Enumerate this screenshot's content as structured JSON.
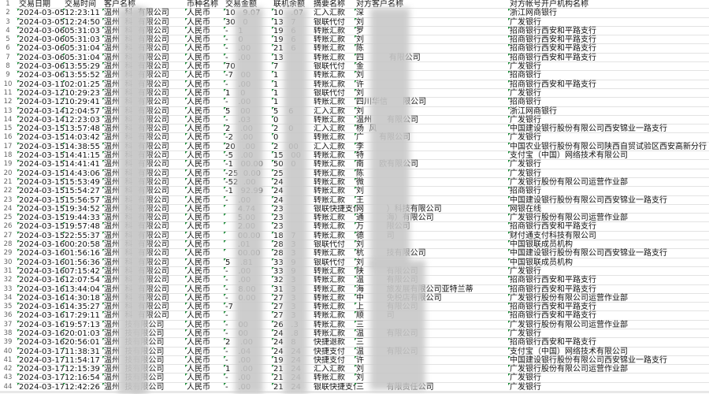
{
  "columns": [
    "交易日期",
    "交易时间",
    "客户名称",
    "币种名称",
    "交易金额",
    "联机余额",
    "摘要名称",
    "对方客户名称",
    "对方帐号开户机构名称"
  ],
  "rows": [
    [
      "2024-03-05",
      "12:23:11",
      "温州  科  有限公司",
      "人民币",
      "10   9.07",
      "10   .07",
      "汇入汇款",
      "深",
      "浙江网商银行"
    ],
    [
      "2024-03-05",
      "12:24:50",
      "温州  科  有限公司",
      "人民币",
      "30   0",
      "13   7",
      "银联代付",
      "刘",
      "广发银行"
    ],
    [
      "2024-03-06",
      "05:31:03",
      "温州  科  有限公司",
      "人民币",
      "-    1",
      "19   6",
      "转账汇款",
      "罗",
      "招商银行西安和平路支行"
    ],
    [
      "2024-03-06",
      "05:31:03",
      "温州  科  有限公司",
      "人民币",
      "-    0",
      "19   6",
      "转账汇款",
      "刘",
      "招商银行西安和平路支行"
    ],
    [
      "2024-03-06",
      "05:31:04",
      "温州  科  有限公司",
      "人民币",
      "-    .00",
      "21   6",
      "转账汇款",
      "陈",
      "招商银行西安和平路支行"
    ],
    [
      "2024-03-06",
      "05:31:04",
      "温州  科  有限公司",
      "人民币",
      "-    .00",
      "13",
      "转账汇款",
      "四          有限公司",
      "招商银行西安和平路支行"
    ],
    [
      "2024-03-06",
      "13:55:29",
      "温州  科  有限公司",
      "人民币",
      "70",
      "7",
      "银联代付",
      "金",
      "广发银行"
    ],
    [
      "2024-03-06",
      "13:55:52",
      "温州  科  有限公司",
      "人民币",
      "-7   00",
      "1",
      "转账汇款",
      "刘",
      "招商银行"
    ],
    [
      "2024-03-11",
      "02:01:25",
      "温州  科  有限公司",
      "人民币",
      "-    .00",
      "1",
      "转账汇款",
      "许",
      "招商银行西安和平路支行"
    ],
    [
      "2024-03-12",
      "10:29:23",
      "温州  科  有限公司",
      "人民币",
      "1    0",
      "1",
      "银联代付",
      "刘",
      "广发银行"
    ],
    [
      "2024-03-12",
      "10:29:41",
      "温州  科  有限公司",
      "人民币",
      "-    .00",
      "1",
      "转账汇款",
      "四川华信      限公司",
      "招商银行"
    ],
    [
      "2024-03-14",
      "12:04:57",
      "温州  科  有限公司",
      "人民币",
      "5    00",
      "5    6",
      "汇入汇款",
      "刘",
      "浙江网商银行"
    ],
    [
      "2024-03-14",
      "12:23:03",
      "温州  科  有限公司",
      "人民币",
      "-    .03",
      "0",
      "转账汇款",
      "温州      有限公司",
      "广发银行"
    ],
    [
      "2024-03-15",
      "13:57:48",
      "温州  科  有限公司",
      "人民币",
      "2    .00",
      "2    0",
      "汇入汇款",
      "杨  风",
      "中国建设银行股份有限公司西安锦业一路支行"
    ],
    [
      "2024-03-15",
      "14:03:42",
      "温州  科  有限公司",
      "人民币",
      "-2   .00",
      "0",
      "转账汇款",
      "广      有限公司",
      "广发银行"
    ],
    [
      "2024-03-15",
      "14:38:55",
      "温州  科  有限公司",
      "人民币",
      "20   .00",
      "2    00",
      "汇入汇款",
      "李",
      "中国农业银行股份有限公司陕西自贸试验区西安高新分行"
    ],
    [
      "2024-03-15",
      "14:41:15",
      "温州  科  有限公司",
      "人民币",
      "-5   .00",
      "15   00",
      "转账汇款",
      "特",
      "支付宝（中国）网络技术有限公司"
    ],
    [
      "2024-03-15",
      "14:41:41",
      "温州  科  有限公司",
      "人民币",
      "-1   00.00",
      "50   0",
      "转账汇款",
      "南      欧有限公司",
      "广发银行"
    ],
    [
      "2024-03-15",
      "14:43:06",
      "温州  科  有限公司",
      "人民币",
      "-25  0.00",
      "25",
      "转账汇款",
      "陈",
      "广发银行"
    ],
    [
      "2024-03-15",
      "15:53:49",
      "温州  科  有限公司",
      "人民币",
      "-52  .00",
      "24",
      "转账汇款",
      "微",
      "广发银行股份有限公司运营作业部"
    ],
    [
      "2024-03-15",
      "15:54:27",
      "温州  科  有限公司",
      "人民币",
      "-1   92.99",
      "24",
      "转账汇款",
      "刘",
      "招商银行"
    ],
    [
      "2024-03-15",
      "15:56:57",
      "温州  科  有限公司",
      "人民币",
      "-    .00",
      "24",
      "转账汇款",
      "王",
      "中国建设银行股份有限公司西安锦业一路支行"
    ],
    [
      "2024-03-15",
      "19:34:52",
      "温州  科  有限公司",
      "人民币",
      "     4.74",
      "23",
      "银联快捷支付",
      "网         ）科技有限公司",
      "网银在线"
    ],
    [
      "2024-03-15",
      "19:44:33",
      "温州  科  有限公司",
      "人民币",
      "     5.00",
      "23",
      "转账汇款",
      "通         海）有限公司",
      "广发银行股份有限公司运营作业部"
    ],
    [
      "2024-03-15",
      "19:57:48",
      "温州  科  有限公司",
      "人民币",
      "     2.00",
      "23",
      "转账汇款",
      "万         限公司",
      "招商银行西安和平路支行"
    ],
    [
      "2024-03-15",
      "22:55:37",
      "温州  科  有限公司",
      "人民币",
      "     00.00",
      "18   7",
      "转账汇款",
      "德         司",
      "财付通支付科技有限公司"
    ],
    [
      "2024-03-16",
      "00:20:58",
      "温州  科  有限公司",
      "人民币",
      "     .01",
      "28   3",
      "银联代付",
      "刘",
      "中国银联成员机构"
    ],
    [
      "2024-03-16",
      "01:56:16",
      "温州  科  有限公司",
      "人民币",
      "     00.00",
      "28   3",
      "转账汇款",
      "杭         技有限公司",
      "中国建设银行股份有限公司西安锦业一路支行"
    ],
    [
      "2024-03-16",
      "01:56:36",
      "温州  科  有限公司",
      "人民币",
      "5    .81",
      "33   9",
      "银联代付",
      "刘",
      "中国银联成员机构"
    ],
    [
      "2024-03-16",
      "07:15:42",
      "温州  科  有限公司",
      "人民币",
      "-    .00",
      "33   9",
      "转账汇款",
      "陕         有限公司",
      "广发银行"
    ],
    [
      "2024-03-16",
      "12:07:54",
      "温州  科  有限公司",
      "人民币",
      "-    .00",
      "32   3",
      "转账汇款",
      "温         有限公司",
      "招商银行西安和平路支行"
    ],
    [
      "2024-03-16",
      "13:44:04",
      "温州  科  有限公司",
      "人民币",
      "-    8.00",
      "31   3",
      "转账汇款",
      "海         旅发展有限公司亚特兰蒂",
      "招商银行西安和平路支行"
    ],
    [
      "2024-03-16",
      "14:30:18",
      "温州  科  有限公司",
      "人民币",
      "-    0.00",
      "27   3",
      "转账汇款",
      "中         免税店有限公司",
      "广发银行股份有限公司运营作业部"
    ],
    [
      "2024-03-16",
      "14:35:27",
      "温州  科  有限公司",
      "人民币",
      "-7",
      "27   3",
      "转账汇款",
      "上         有限公司",
      "招商银行西安和平路支行"
    ],
    [
      "2024-03-16",
      "17:29:11",
      "温州  科  有限公司",
      "人民币",
      "-",
      "27   3",
      "转账汇款",
      "顺         司",
      "招商银行西安和平路支行"
    ],
    [
      "2024-03-16",
      "19:57:13",
      "温州  技有限公司",
      "人民币",
      "-    00",
      "26   .3",
      "转账汇款",
      "三",
      "广发银行股份有限公司运营作业部"
    ],
    [
      "2024-03-16",
      "20:01:03",
      "温州  技有限公司",
      "人民币",
      "-    00",
      "24   .8",
      "转账汇款",
      "温         有限公司",
      "广发银行"
    ],
    [
      "2024-03-16",
      "20:56:01",
      "温州  技有限公司",
      "人民币",
      "2    .00",
      "24   8",
      "快捷退款",
      "三",
      "招商银行西安和平路支行"
    ],
    [
      "2024-03-17",
      "11:38:31",
      "温州  技有限公司",
      "人民币",
      "-    .04",
      "24   24",
      "快捷支付",
      "温         有限公司",
      "支付宝（中国）网络技术有限公司"
    ],
    [
      "2024-03-17",
      "11:54:17",
      "温州  技有限公司",
      "人民币",
      "-    .00",
      "19   24",
      "快捷支付",
      "许",
      "中国建设银行股份有限公司西安锦业一路支行"
    ],
    [
      "2024-03-17",
      "12:15:39",
      "温州  技有限公司",
      "人民币",
      "1    .00",
      "21   24",
      "汇入汇款",
      "刘",
      "广发银行股份有限公司运营作业部"
    ],
    [
      "2024-03-17",
      "12:16:54",
      "温州  技有限公司",
      "人民币",
      "-    .00",
      "21   24",
      "转账汇款",
      "刘",
      "广发银行"
    ],
    [
      "2024-03-17",
      "12:42:26",
      "温州  技有限公司",
      "人民币",
      "-    .00",
      "21   24",
      "银联快捷支付",
      "三         有限责任公司",
      "广发银行"
    ]
  ],
  "colors": {
    "grid": "#e3e3e3",
    "text_marker": "#1e8c3a"
  }
}
